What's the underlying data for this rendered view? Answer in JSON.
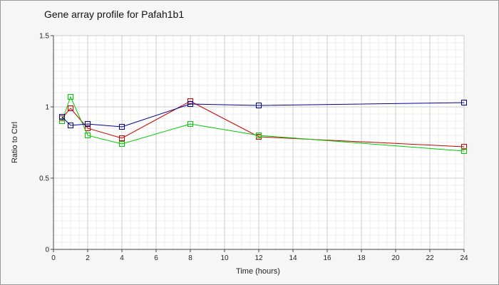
{
  "chart_data": {
    "type": "line",
    "title": "Gene array profile for Pafah1b1",
    "xlabel": "Time (hours)",
    "ylabel": "Ratio to Ctrl",
    "xlim": [
      0,
      24
    ],
    "ylim": [
      0,
      1.5
    ],
    "x_ticks": [
      "0",
      "2",
      "4",
      "6",
      "8",
      "10",
      "12",
      "14",
      "16",
      "18",
      "20",
      "22",
      "24"
    ],
    "y_ticks": [
      "0",
      "0.5",
      "1",
      "1.5"
    ],
    "grid": true,
    "legend": "none",
    "series": [
      {
        "color": "#cc0000",
        "points": [
          {
            "x": 0.5,
            "y": 0.92
          },
          {
            "x": 1,
            "y": 0.99
          },
          {
            "x": 2,
            "y": 0.85
          },
          {
            "x": 4,
            "y": 0.78
          },
          {
            "x": 8,
            "y": 1.04
          },
          {
            "x": 12,
            "y": 0.79
          },
          {
            "x": 24,
            "y": 0.72
          }
        ]
      },
      {
        "color": "#00cc00",
        "points": [
          {
            "x": 0.5,
            "y": 0.9
          },
          {
            "x": 1,
            "y": 1.07
          },
          {
            "x": 2,
            "y": 0.8
          },
          {
            "x": 4,
            "y": 0.74
          },
          {
            "x": 8,
            "y": 0.88
          },
          {
            "x": 12,
            "y": 0.8
          },
          {
            "x": 24,
            "y": 0.69
          }
        ]
      },
      {
        "color": "#000099",
        "points": [
          {
            "x": 0.5,
            "y": 0.93
          },
          {
            "x": 1,
            "y": 0.87
          },
          {
            "x": 2,
            "y": 0.88
          },
          {
            "x": 4,
            "y": 0.86
          },
          {
            "x": 8,
            "y": 1.02
          },
          {
            "x": 12,
            "y": 1.01
          },
          {
            "x": 24,
            "y": 1.03
          }
        ]
      }
    ]
  }
}
